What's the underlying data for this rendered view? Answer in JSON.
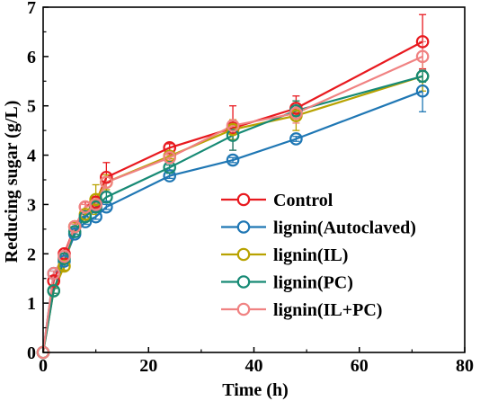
{
  "chart_data": {
    "type": "line",
    "title": "",
    "xlabel": "Time (h)",
    "ylabel": "Reducing sugar (g/L)",
    "xlim": [
      0,
      80
    ],
    "ylim": [
      0,
      7
    ],
    "xticks": [
      "0",
      "20",
      "40",
      "60",
      "80"
    ],
    "yticks": [
      "0",
      "1",
      "2",
      "3",
      "4",
      "5",
      "6",
      "7"
    ],
    "grid": false,
    "legend_position": "lower-right",
    "x": [
      0,
      2,
      4,
      6,
      8,
      10,
      12,
      24,
      36,
      48,
      72
    ],
    "series": [
      {
        "name": "Control",
        "color": "#e8191f",
        "values": [
          0,
          1.45,
          2.0,
          2.55,
          2.95,
          3.05,
          3.55,
          4.15,
          4.55,
          4.95,
          6.3
        ],
        "errors": [
          0,
          0.08,
          0.1,
          0.1,
          0.1,
          0.1,
          0.3,
          0.08,
          0.45,
          0.25,
          0.55
        ]
      },
      {
        "name": "lignin(Autoclaved)",
        "color": "#1f77b4",
        "values": [
          0,
          1.6,
          1.85,
          2.4,
          2.65,
          2.75,
          2.95,
          3.58,
          3.9,
          4.33,
          5.3
        ],
        "errors": [
          0,
          0.05,
          0.05,
          0.05,
          0.05,
          0.05,
          0.05,
          0.05,
          0.05,
          0.05,
          0.42
        ]
      },
      {
        "name": "lignin(IL)",
        "color": "#b8a200",
        "values": [
          0,
          1.25,
          1.75,
          2.55,
          2.8,
          3.1,
          3.45,
          3.98,
          4.52,
          4.8,
          5.6
        ],
        "errors": [
          0,
          0.05,
          0.08,
          0.08,
          0.1,
          0.3,
          0.15,
          0.05,
          0.2,
          0.3,
          0.3
        ]
      },
      {
        "name": "lignin(PC)",
        "color": "#178a75",
        "values": [
          0,
          1.25,
          1.9,
          2.45,
          2.75,
          2.95,
          3.15,
          3.75,
          4.4,
          4.9,
          5.6
        ],
        "errors": [
          0,
          0.05,
          0.05,
          0.05,
          0.05,
          0.08,
          0.1,
          0.05,
          0.3,
          0.2,
          0.12
        ]
      },
      {
        "name": "lignin(IL+PC)",
        "color": "#f08282",
        "values": [
          0,
          1.6,
          1.95,
          2.55,
          2.95,
          3.0,
          3.45,
          3.95,
          4.6,
          4.85,
          6.0
        ],
        "errors": [
          0,
          0.05,
          0.05,
          0.05,
          0.05,
          0.08,
          0.1,
          0.05,
          0.1,
          0.2,
          0.3
        ]
      }
    ]
  }
}
